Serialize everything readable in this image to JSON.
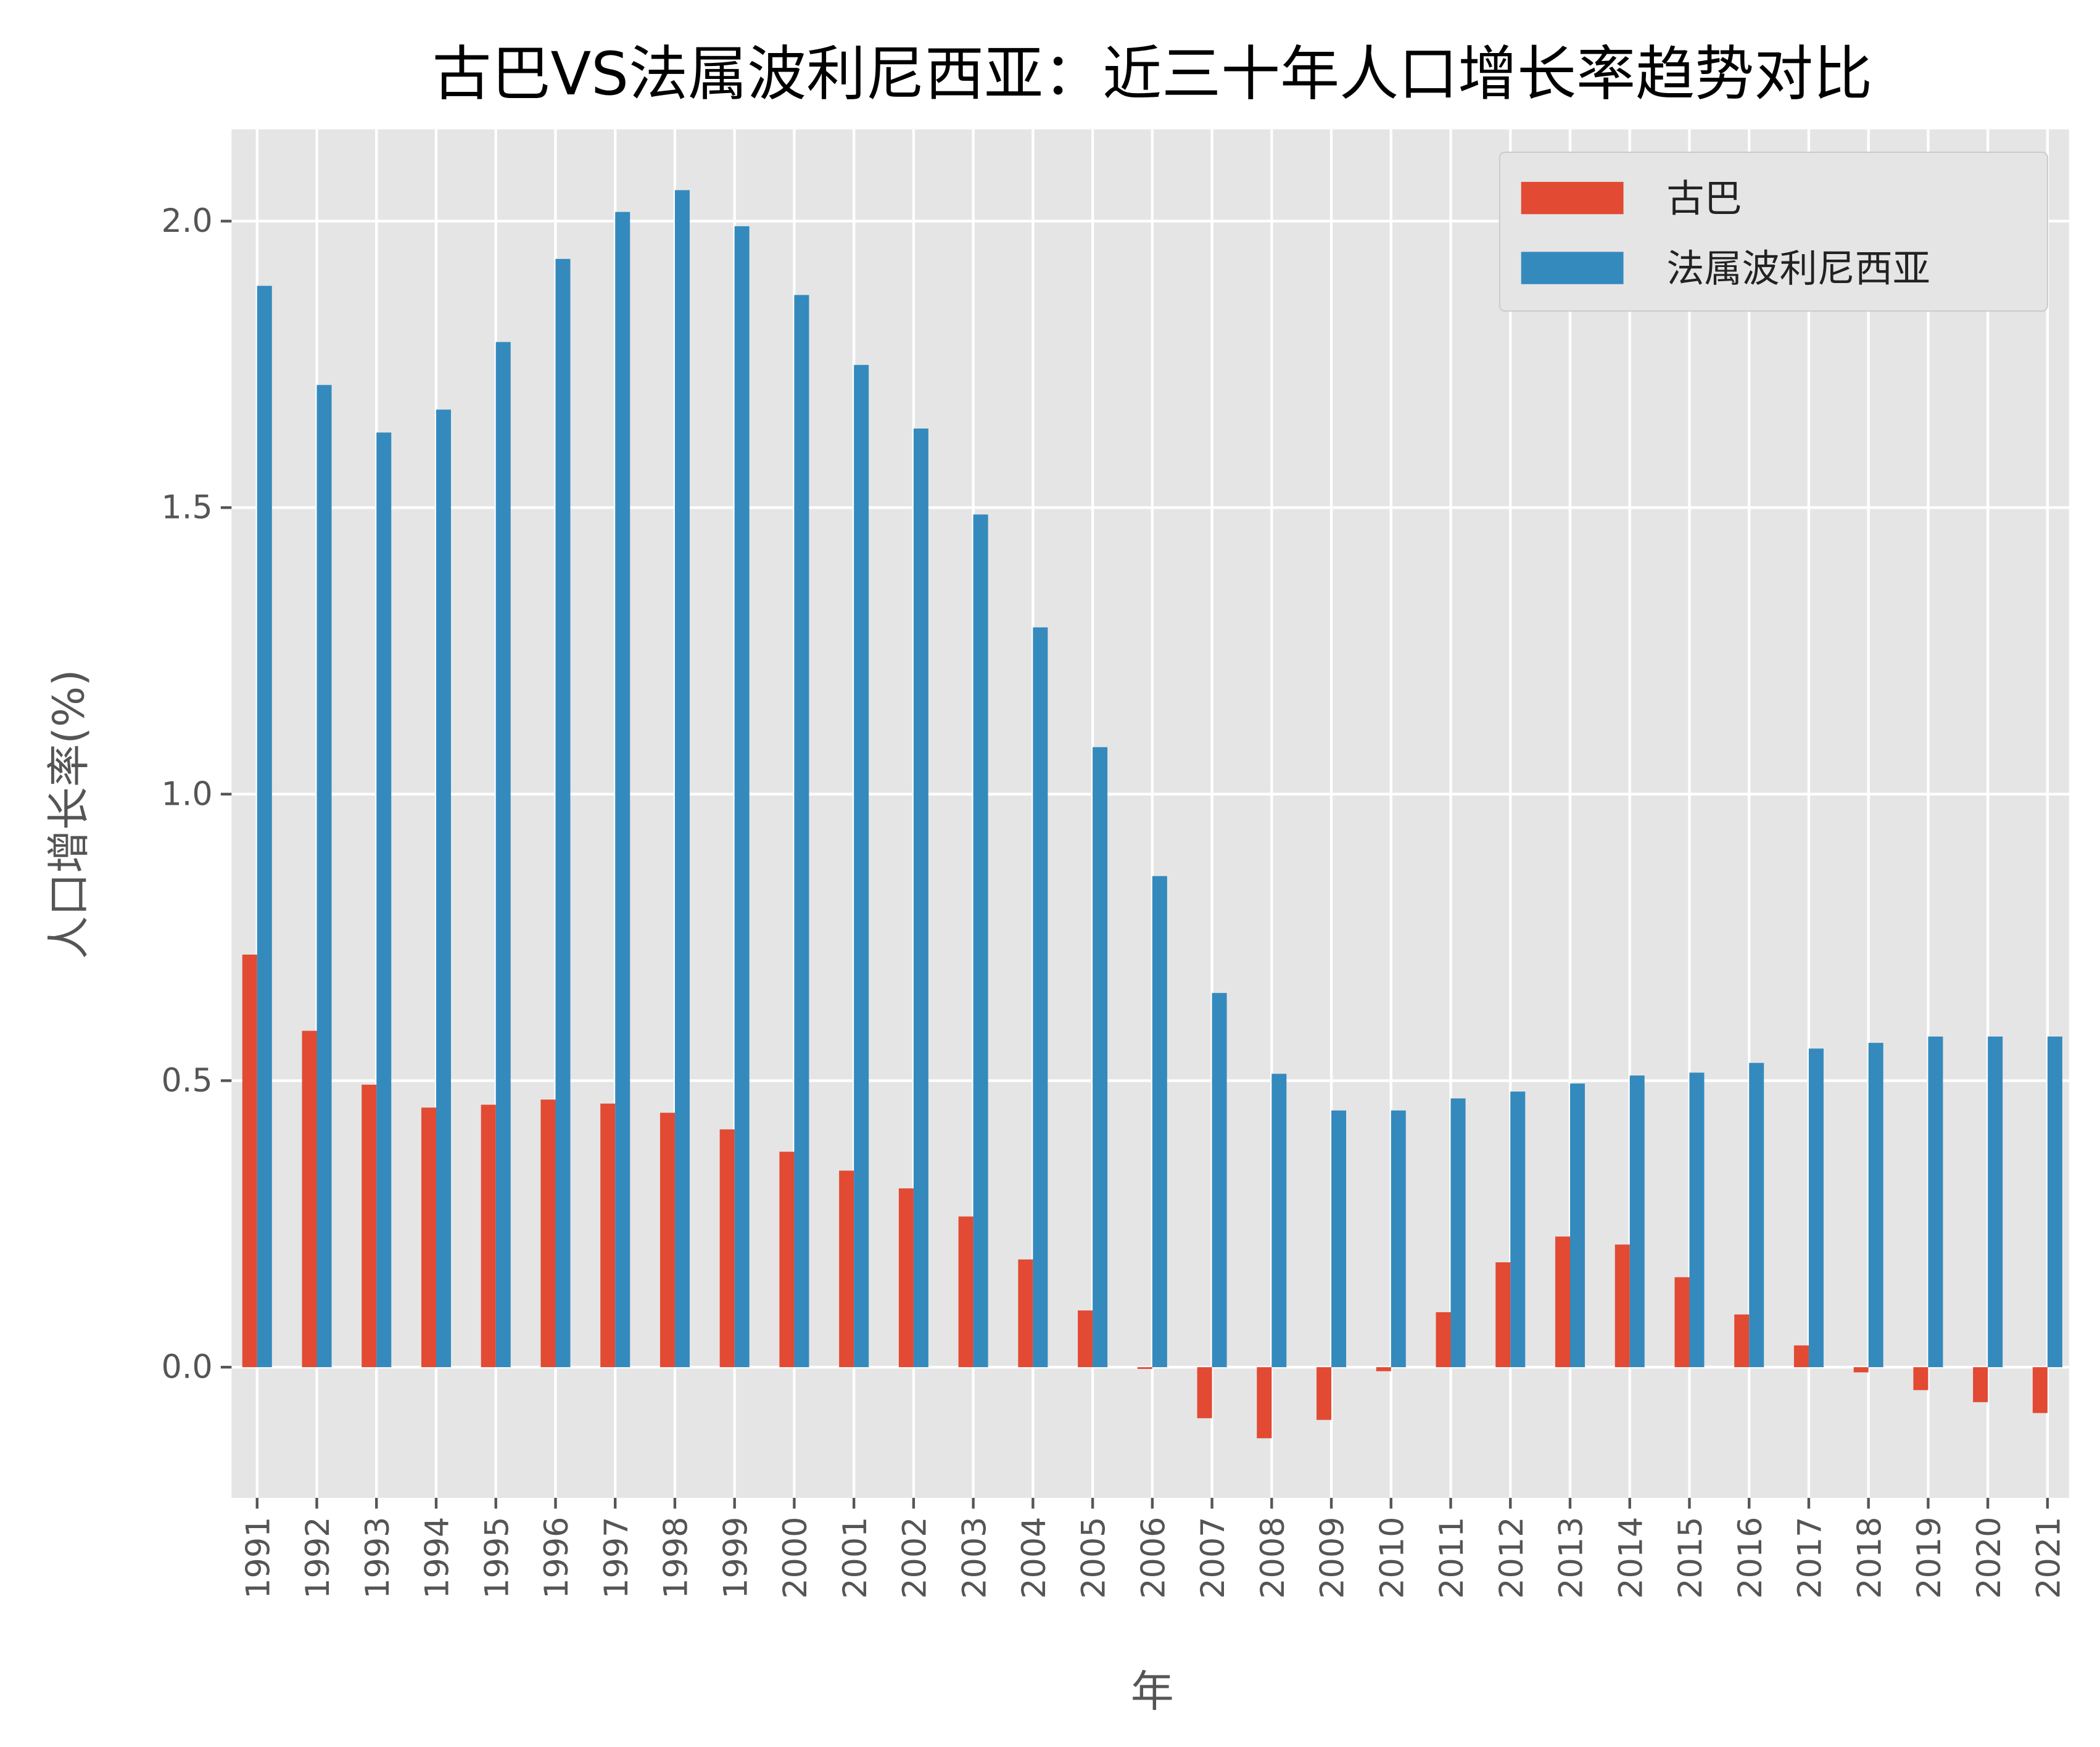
{
  "chart_data": {
    "type": "bar",
    "title": "古巴VS法属波利尼西亚：近三十年人口增长率趋势对比",
    "xlabel": "年",
    "ylabel": "人口增长率(%)",
    "ylim": [
      -0.228,
      2.16
    ],
    "yticks": [
      "0.0",
      "0.5",
      "1.0",
      "1.5",
      "2.0"
    ],
    "ytick_values": [
      0,
      0.5,
      1.0,
      1.5,
      2.0
    ],
    "grid": true,
    "legend_position": "top-right",
    "background": "#E5E5E5",
    "categories": [
      "1991",
      "1992",
      "1993",
      "1994",
      "1995",
      "1996",
      "1997",
      "1998",
      "1999",
      "2000",
      "2001",
      "2002",
      "2003",
      "2004",
      "2005",
      "2006",
      "2007",
      "2008",
      "2009",
      "2010",
      "2011",
      "2012",
      "2013",
      "2014",
      "2015",
      "2016",
      "2017",
      "2018",
      "2019",
      "2020",
      "2021"
    ],
    "series": [
      {
        "name": "古巴",
        "color": "#E24A33",
        "values": [
          0.72,
          0.587,
          0.493,
          0.453,
          0.458,
          0.467,
          0.46,
          0.444,
          0.415,
          0.376,
          0.343,
          0.312,
          0.263,
          0.188,
          0.099,
          -0.003,
          -0.089,
          -0.124,
          -0.092,
          -0.007,
          0.096,
          0.183,
          0.228,
          0.214,
          0.157,
          0.092,
          0.038,
          -0.009,
          -0.04,
          -0.061,
          -0.08
        ]
      },
      {
        "name": "法属波利尼西亚",
        "color": "#348ABD",
        "values": [
          1.887,
          1.714,
          1.631,
          1.671,
          1.789,
          1.934,
          2.016,
          2.054,
          1.991,
          1.871,
          1.749,
          1.638,
          1.488,
          1.291,
          1.082,
          0.857,
          0.653,
          0.512,
          0.448,
          0.448,
          0.469,
          0.481,
          0.495,
          0.509,
          0.514,
          0.531,
          0.556,
          0.566,
          0.577,
          0.577,
          0.577
        ]
      }
    ]
  }
}
